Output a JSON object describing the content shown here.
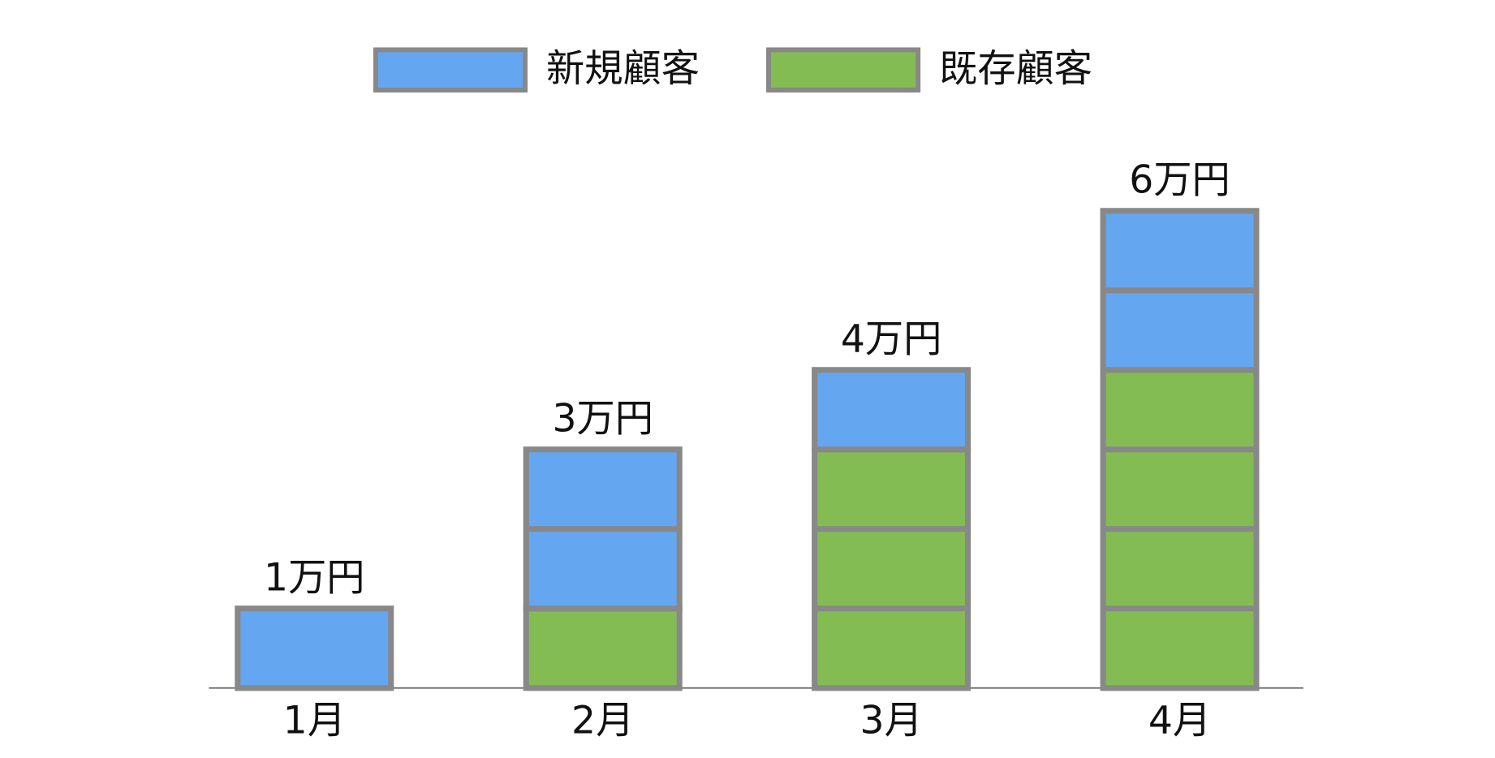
{
  "chart_data": {
    "type": "stacked_bar",
    "categories": [
      "1月",
      "2月",
      "3月",
      "4月"
    ],
    "series": [
      {
        "name": "新規顧客",
        "color": "#64a7f0",
        "values": [
          1,
          2,
          1,
          2
        ]
      },
      {
        "name": "既存顧客",
        "color": "#84bc54",
        "values": [
          0,
          1,
          3,
          4
        ]
      }
    ],
    "totals": [
      1,
      3,
      4,
      6
    ],
    "total_labels": [
      "1万円",
      "3万円",
      "4万円",
      "6万円"
    ]
  }
}
